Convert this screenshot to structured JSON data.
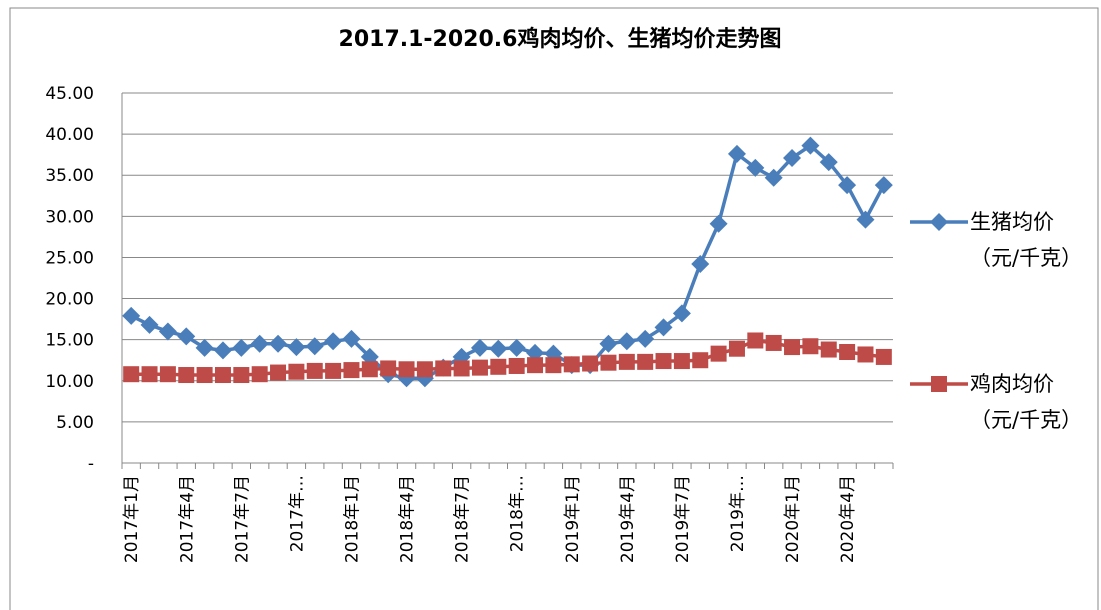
{
  "chart_data": {
    "type": "line",
    "title": "2017.1-2020.6鸡肉均价、生猪均价走势图",
    "categories": [
      "2017年1月",
      null,
      null,
      "2017年4月",
      null,
      null,
      "2017年7月",
      null,
      null,
      "2017年…",
      null,
      null,
      "2018年1月",
      null,
      null,
      "2018年4月",
      null,
      null,
      "2018年7月",
      null,
      null,
      "2018年…",
      null,
      null,
      "2019年1月",
      null,
      null,
      "2019年4月",
      null,
      null,
      "2019年7月",
      null,
      null,
      "2019年…",
      null,
      null,
      "2020年1月",
      null,
      null,
      "2020年4月",
      null,
      null
    ],
    "series": [
      {
        "name": "生猪均价（元/千克）",
        "color": "#4a7ebb",
        "marker": "diamond",
        "values": [
          17.9,
          16.8,
          16.0,
          15.4,
          14.0,
          13.7,
          14.0,
          14.5,
          14.5,
          14.1,
          14.2,
          14.8,
          15.1,
          12.9,
          10.8,
          10.3,
          10.3,
          11.6,
          12.9,
          14.0,
          13.9,
          14.0,
          13.4,
          13.3,
          11.9,
          11.9,
          14.5,
          14.8,
          15.1,
          16.5,
          18.2,
          24.2,
          29.1,
          37.6,
          35.9,
          34.7,
          37.1,
          38.6,
          36.6,
          33.8,
          29.6,
          33.8
        ]
      },
      {
        "name": "鸡肉均价（元/千克）",
        "color": "#be4b48",
        "marker": "square",
        "values": [
          10.8,
          10.8,
          10.8,
          10.7,
          10.7,
          10.7,
          10.7,
          10.8,
          11.0,
          11.1,
          11.2,
          11.2,
          11.3,
          11.4,
          11.5,
          11.4,
          11.4,
          11.5,
          11.5,
          11.6,
          11.7,
          11.8,
          11.9,
          11.9,
          12.0,
          12.1,
          12.2,
          12.3,
          12.3,
          12.4,
          12.4,
          12.5,
          13.3,
          13.9,
          14.9,
          14.6,
          14.1,
          14.2,
          13.8,
          13.5,
          13.2,
          12.9
        ]
      }
    ],
    "ylim": [
      0,
      45
    ],
    "yticks": [
      {
        "value": 0,
        "label": "-"
      },
      {
        "value": 5,
        "label": "5.00"
      },
      {
        "value": 10,
        "label": "10.00"
      },
      {
        "value": 15,
        "label": "15.00"
      },
      {
        "value": 20,
        "label": "20.00"
      },
      {
        "value": 25,
        "label": "25.00"
      },
      {
        "value": 30,
        "label": "30.00"
      },
      {
        "value": 35,
        "label": "35.00"
      },
      {
        "value": 40,
        "label": "40.00"
      },
      {
        "value": 45,
        "label": "45.00"
      }
    ],
    "grid": true
  }
}
